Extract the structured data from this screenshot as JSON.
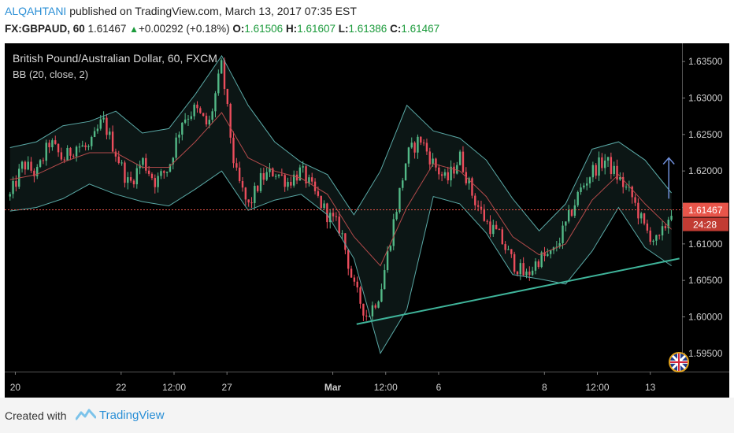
{
  "header": {
    "author": "ALQAHTANI",
    "published_text": "published on TradingView.com, March 13, 2017 07:35 EST",
    "symbol": "FX:GBPAUD, 60",
    "last": "1.61467",
    "change": "+0.00292 (+0.18%)",
    "o_label": "O:",
    "o_value": "1.61506",
    "h_label": "H:",
    "h_value": "1.61607",
    "l_label": "L:",
    "l_value": "1.61386",
    "c_label": "C:",
    "c_value": "1.61467"
  },
  "chart": {
    "title": "British Pound/Australian Dollar, 60, FXCM",
    "indicator": "BB (20, close, 2)",
    "price_badge": "1.61467",
    "timer_badge": "24:28"
  },
  "footer": {
    "created_with": "Created with",
    "brand": "TradingView"
  },
  "colors": {
    "background": "#000000",
    "up_candle": "#53b987",
    "down_candle": "#eb4d5c",
    "bb_band": "#5aa9a6",
    "bb_basis": "#b24a4a",
    "trendline": "#3fb49a",
    "price_badge": "#e8554a"
  },
  "chart_data": {
    "type": "candlestick",
    "ylim": [
      1.5925,
      1.6375
    ],
    "ytick_labels": [
      "1.63500",
      "1.63000",
      "1.62500",
      "1.62000",
      "1.61500",
      "1.61000",
      "1.60500",
      "1.60000",
      "1.59500"
    ],
    "yticks": [
      1.635,
      1.63,
      1.625,
      1.62,
      1.615,
      1.61,
      1.605,
      1.6,
      1.595
    ],
    "xtick_labels": [
      "20",
      "22",
      "12:00",
      "27",
      "Mar",
      "12:00",
      "6",
      "8",
      "12:00",
      "13"
    ],
    "xtick_positions": [
      0.1,
      2.1,
      3.1,
      4.1,
      6.1,
      7.1,
      8.1,
      10.1,
      11.1,
      12.1
    ],
    "x_range": [
      -0.1,
      12.7
    ],
    "close_series": [
      [
        0.0,
        1.6165
      ],
      [
        0.25,
        1.621
      ],
      [
        0.5,
        1.6195
      ],
      [
        0.75,
        1.624
      ],
      [
        1.0,
        1.6215
      ],
      [
        1.25,
        1.6235
      ],
      [
        1.5,
        1.623
      ],
      [
        1.75,
        1.627
      ],
      [
        2.0,
        1.6225
      ],
      [
        2.25,
        1.618
      ],
      [
        2.5,
        1.6215
      ],
      [
        2.75,
        1.6185
      ],
      [
        3.0,
        1.6205
      ],
      [
        3.25,
        1.627
      ],
      [
        3.5,
        1.6285
      ],
      [
        3.75,
        1.626
      ],
      [
        4.0,
        1.6345
      ],
      [
        4.25,
        1.62
      ],
      [
        4.5,
        1.615
      ],
      [
        4.75,
        1.619
      ],
      [
        5.0,
        1.62
      ],
      [
        5.25,
        1.6185
      ],
      [
        5.5,
        1.62
      ],
      [
        5.75,
        1.617
      ],
      [
        6.0,
        1.614
      ],
      [
        6.25,
        1.612
      ],
      [
        6.5,
        1.604
      ],
      [
        6.75,
        1.6
      ],
      [
        7.0,
        1.6035
      ],
      [
        7.25,
        1.613
      ],
      [
        7.5,
        1.622
      ],
      [
        7.75,
        1.6245
      ],
      [
        8.0,
        1.621
      ],
      [
        8.25,
        1.6185
      ],
      [
        8.5,
        1.622
      ],
      [
        8.75,
        1.6165
      ],
      [
        9.0,
        1.613
      ],
      [
        9.25,
        1.611
      ],
      [
        9.5,
        1.6075
      ],
      [
        9.75,
        1.6055
      ],
      [
        10.0,
        1.608
      ],
      [
        10.25,
        1.6085
      ],
      [
        10.5,
        1.6125
      ],
      [
        10.75,
        1.617
      ],
      [
        11.0,
        1.62
      ],
      [
        11.25,
        1.6215
      ],
      [
        11.5,
        1.619
      ],
      [
        11.75,
        1.6165
      ],
      [
        12.0,
        1.612
      ],
      [
        12.25,
        1.61
      ],
      [
        12.5,
        1.6147
      ]
    ],
    "bb_upper": [
      [
        0.0,
        1.6232
      ],
      [
        0.5,
        1.624
      ],
      [
        1.0,
        1.6262
      ],
      [
        1.5,
        1.6268
      ],
      [
        2.0,
        1.6282
      ],
      [
        2.5,
        1.6252
      ],
      [
        3.0,
        1.6258
      ],
      [
        3.5,
        1.6305
      ],
      [
        4.0,
        1.6358
      ],
      [
        4.5,
        1.629
      ],
      [
        5.0,
        1.624
      ],
      [
        5.5,
        1.6212
      ],
      [
        6.0,
        1.6195
      ],
      [
        6.5,
        1.614
      ],
      [
        7.0,
        1.62
      ],
      [
        7.5,
        1.629
      ],
      [
        8.0,
        1.6255
      ],
      [
        8.5,
        1.6245
      ],
      [
        9.0,
        1.6215
      ],
      [
        9.5,
        1.6162
      ],
      [
        10.0,
        1.6118
      ],
      [
        10.5,
        1.6155
      ],
      [
        11.0,
        1.623
      ],
      [
        11.5,
        1.624
      ],
      [
        12.0,
        1.6215
      ],
      [
        12.5,
        1.617
      ]
    ],
    "bb_basis": [
      [
        0.0,
        1.6188
      ],
      [
        0.5,
        1.6195
      ],
      [
        1.0,
        1.6212
      ],
      [
        1.5,
        1.6225
      ],
      [
        2.0,
        1.6225
      ],
      [
        2.5,
        1.6205
      ],
      [
        3.0,
        1.6205
      ],
      [
        3.5,
        1.624
      ],
      [
        4.0,
        1.628
      ],
      [
        4.5,
        1.6218
      ],
      [
        5.0,
        1.62
      ],
      [
        5.5,
        1.619
      ],
      [
        6.0,
        1.6168
      ],
      [
        6.5,
        1.611
      ],
      [
        7.0,
        1.607
      ],
      [
        7.5,
        1.615
      ],
      [
        8.0,
        1.621
      ],
      [
        8.5,
        1.62
      ],
      [
        9.0,
        1.6165
      ],
      [
        9.5,
        1.611
      ],
      [
        10.0,
        1.6085
      ],
      [
        10.5,
        1.61
      ],
      [
        11.0,
        1.616
      ],
      [
        11.5,
        1.6195
      ],
      [
        12.0,
        1.6155
      ],
      [
        12.5,
        1.612
      ]
    ],
    "bb_lower": [
      [
        0.0,
        1.6145
      ],
      [
        0.5,
        1.615
      ],
      [
        1.0,
        1.6162
      ],
      [
        1.5,
        1.6182
      ],
      [
        2.0,
        1.6168
      ],
      [
        2.5,
        1.6158
      ],
      [
        3.0,
        1.6152
      ],
      [
        3.5,
        1.6175
      ],
      [
        4.0,
        1.62
      ],
      [
        4.5,
        1.6146
      ],
      [
        5.0,
        1.616
      ],
      [
        5.5,
        1.6168
      ],
      [
        6.0,
        1.614
      ],
      [
        6.5,
        1.608
      ],
      [
        7.0,
        1.595
      ],
      [
        7.5,
        1.601
      ],
      [
        8.0,
        1.6165
      ],
      [
        8.5,
        1.6155
      ],
      [
        9.0,
        1.6115
      ],
      [
        9.5,
        1.6058
      ],
      [
        10.0,
        1.6052
      ],
      [
        10.5,
        1.6045
      ],
      [
        11.0,
        1.609
      ],
      [
        11.5,
        1.615
      ],
      [
        12.0,
        1.6095
      ],
      [
        12.5,
        1.607
      ]
    ],
    "trendline": [
      [
        6.55,
        1.599
      ],
      [
        12.65,
        1.608
      ]
    ],
    "projection_arrow": [
      [
        12.45,
        1.6162
      ],
      [
        12.45,
        1.6218
      ]
    ],
    "current_price": 1.61467
  }
}
